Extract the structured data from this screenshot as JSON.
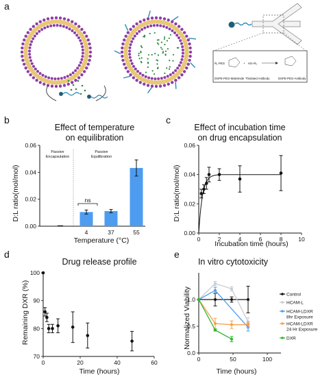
{
  "panel_labels": {
    "a": "a",
    "b": "b",
    "c": "c",
    "d": "d",
    "e": "e"
  },
  "scheme": {
    "formula_left": "R₁·PEG",
    "formula_mid": "HS–R₂",
    "caption_1": "DSPE-PEG-Maleimide",
    "caption_2": "Thiolated Antibody",
    "caption_3": "DSPE-PEG-Antibody"
  },
  "colors": {
    "lipid_head": "#8d3da8",
    "lipid_tail": "#e8c876",
    "drug": "#2f8a45",
    "bar": "#4d9cf0",
    "peg": "#2a8ab6",
    "particle": "#1d5f7a"
  },
  "chart_data": [
    {
      "id": "b",
      "type": "bar",
      "title_lines": [
        "Effect of temperature",
        "on equilibration"
      ],
      "xlabel": "Temperature (°C)",
      "ylabel": "D:L ratio(mol/mol)",
      "categories": [
        "",
        "4",
        "37",
        "55"
      ],
      "values": [
        0.0003,
        0.0105,
        0.0112,
        0.0432
      ],
      "errors": [
        0.0003,
        0.0015,
        0.0012,
        0.006
      ],
      "ylim": [
        0,
        0.06
      ],
      "yticks": [
        "0.00",
        "0.02",
        "0.04",
        "0.06"
      ],
      "group_labels": [
        [
          "Passive",
          "Encapsulation"
        ],
        [
          "Passive",
          "Equilibration"
        ]
      ],
      "annotation": "ns"
    },
    {
      "id": "c",
      "type": "line",
      "title_lines": [
        "Effect of incubation time",
        "on drug encapsulation"
      ],
      "xlabel": "Incubation time (hours)",
      "ylabel": "D:L ratio(mol/mol)",
      "xlim": [
        0,
        10
      ],
      "ylim": [
        0,
        0.06
      ],
      "xticks": [
        "0",
        "2",
        "4",
        "6",
        "8",
        "10"
      ],
      "yticks": [
        "0.00",
        "0.02",
        "0.04",
        "0.06"
      ],
      "x": [
        0.25,
        0.5,
        0.75,
        1,
        2,
        4,
        8
      ],
      "y": [
        0.027,
        0.03,
        0.034,
        0.04,
        0.04,
        0.037,
        0.041
      ],
      "errors": [
        0.003,
        0.003,
        0.004,
        0.005,
        0.004,
        0.009,
        0.012
      ],
      "fit": {
        "plateau": 0.04,
        "rate": 2.8
      }
    },
    {
      "id": "d",
      "type": "scatter",
      "title_lines": [
        "Drug release profile"
      ],
      "xlabel": "Time (hours)",
      "ylabel": "Remaining DXR (%)",
      "xlim": [
        0,
        60
      ],
      "ylim": [
        70,
        100
      ],
      "xticks": [
        "0",
        "20",
        "40",
        "60"
      ],
      "yticks": [
        "70",
        "80",
        "90",
        "100"
      ],
      "x": [
        0,
        1,
        2,
        3,
        5,
        8,
        16,
        24,
        48
      ],
      "y": [
        100,
        86,
        84,
        80,
        80,
        81,
        80.5,
        77.5,
        75.5
      ],
      "errors": [
        0,
        1.5,
        1.5,
        1.5,
        1.5,
        2.5,
        5.5,
        4.5,
        3.5
      ]
    },
    {
      "id": "e",
      "type": "line",
      "title_lines": [
        "In vitro cytotoxicity"
      ],
      "xlabel": "Time (hours)",
      "ylabel": "Normalized Viability",
      "xlim": [
        0,
        120
      ],
      "ylim": [
        0,
        1.5
      ],
      "xticks": [
        "0",
        "50",
        "100"
      ],
      "yticks": [
        "0.0",
        "0.5",
        "1.0"
      ],
      "series": [
        {
          "name": "Control",
          "color": "#111111",
          "x": [
            0,
            24,
            48,
            72
          ],
          "y": [
            1,
            1,
            1,
            1
          ],
          "errors": [
            0,
            0.12,
            0.05,
            0.25
          ]
        },
        {
          "name": "HCAM-L",
          "color": "#c8ccd2",
          "x": [
            0,
            24,
            48,
            72
          ],
          "y": [
            1,
            1.3,
            1.2,
            0.58
          ],
          "errors": [
            0,
            0.04,
            0.04,
            0.08
          ]
        },
        {
          "name": "HCAM-LDXR 8hr Exposure",
          "color": "#4d9cf0",
          "x": [
            0,
            24,
            72
          ],
          "y": [
            1,
            1.17,
            0.48
          ],
          "errors": [
            0,
            0.06,
            0.07
          ]
        },
        {
          "name": "HCAM-LDXR 24 Hr Exposure",
          "color": "#f4a04a",
          "x": [
            0,
            24,
            48,
            72
          ],
          "y": [
            1,
            0.55,
            0.53,
            0.53
          ],
          "errors": [
            0,
            0.1,
            0.07,
            0.05
          ]
        },
        {
          "name": "DXR",
          "color": "#2fb52f",
          "x": [
            0,
            24,
            48
          ],
          "y": [
            1,
            0.43,
            0.26
          ],
          "errors": [
            0,
            0.02,
            0.05
          ]
        }
      ]
    }
  ]
}
